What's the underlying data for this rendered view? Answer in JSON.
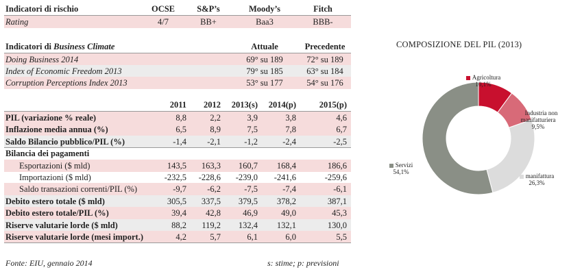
{
  "risk": {
    "header": {
      "label": "Indicatori di rischio",
      "ocse": "OCSE",
      "sp": "S&P’s",
      "moodys": "Moody’s",
      "fitch": "Fitch"
    },
    "rating": {
      "label": "Rating",
      "ocse": "4/7",
      "sp": "BB+",
      "moodys": "Baa3",
      "fitch": "BBB-"
    }
  },
  "business": {
    "header": {
      "label_prefix": "Indicatori di ",
      "label_italic": "Business Climate",
      "current": "Attuale",
      "previous": "Precedente"
    },
    "rows": [
      {
        "label": "Doing Business 2014",
        "current": "69° su 189",
        "previous": "72° su 189"
      },
      {
        "label": "Index of Economic Freedom 2013",
        "current": "79° su 185",
        "previous": "63° su 184"
      },
      {
        "label": "Corruption Perceptions Index 2013",
        "current": "53° su 177",
        "previous": "54° su 176"
      }
    ]
  },
  "macro": {
    "years": [
      "2011",
      "2012",
      "2013(s)",
      "2014(p)",
      "2015(p)"
    ],
    "rows": [
      {
        "label": "PIL (variazione % reale)",
        "values": [
          "8,8",
          "2,2",
          "3,9",
          "3,8",
          "4,6"
        ]
      },
      {
        "label": "Inflazione media annua (%)",
        "values": [
          "6,5",
          "8,9",
          "7,5",
          "7,8",
          "6,7"
        ]
      },
      {
        "label": "Saldo Bilancio pubblico/PIL (%)",
        "values": [
          "-1,4",
          "-2,1",
          "-1,2",
          "-2,4",
          "-2,5"
        ]
      },
      {
        "label": "Bilancia dei pagamenti",
        "values": [
          "",
          "",
          "",
          "",
          ""
        ]
      },
      {
        "label": "Esportazioni ($ mld)",
        "values": [
          "143,5",
          "163,3",
          "160,7",
          "168,4",
          "186,6"
        ]
      },
      {
        "label": "Importazioni ($ mld)",
        "values": [
          "-232,5",
          "-228,6",
          "-239,0",
          "-241,6",
          "-259,6"
        ]
      },
      {
        "label": "Saldo transazioni correnti/PIL (%)",
        "values": [
          "-9,7",
          "-6,2",
          "-7,5",
          "-7,4",
          "-6,1"
        ]
      },
      {
        "label": "Debito estero totale ($ mld)",
        "values": [
          "305,5",
          "337,5",
          "379,5",
          "378,2",
          "387,1"
        ]
      },
      {
        "label": "Debito estero totale/PIL (%)",
        "values": [
          "39,4",
          "42,8",
          "46,9",
          "49,0",
          "45,3"
        ]
      },
      {
        "label": "Riserve valutarie lorde ($ mld)",
        "values": [
          "88,2",
          "119,2",
          "132,4",
          "132,1",
          "130,0"
        ]
      },
      {
        "label": "Riserve valutarie lorde (mesi import.)",
        "values": [
          "4,2",
          "5,7",
          "6,1",
          "6,0",
          "5,5"
        ]
      }
    ]
  },
  "footer": {
    "source": "Fonte:  EIU, gennaio 2014",
    "note": "s: stime; p: previsioni"
  },
  "chart_data": {
    "type": "pie",
    "title": "COMPOSIZIONE DEL PIL (2013)",
    "donut": true,
    "slices": [
      {
        "name": "Agricoltura",
        "value": 10.1,
        "label": "10,1%",
        "color": "#c8102e"
      },
      {
        "name": "Industria non manifatturiera",
        "value": 9.5,
        "label": "9,5%",
        "color": "#d86a78"
      },
      {
        "name": "manifattura",
        "value": 26.3,
        "label": "26,3%",
        "color": "#dcdcdc"
      },
      {
        "name": "Servizi",
        "value": 54.1,
        "label": "54,1%",
        "color": "#8a8f86"
      }
    ]
  }
}
